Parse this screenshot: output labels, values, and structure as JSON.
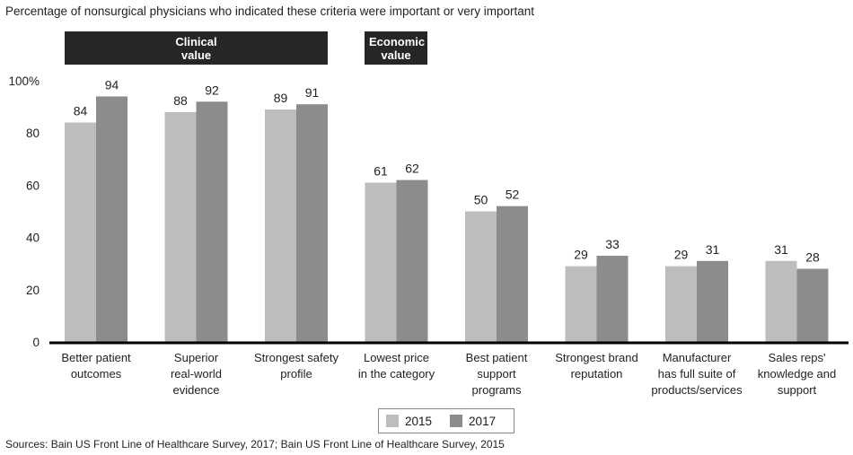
{
  "chart_data": {
    "type": "bar",
    "subtitle": "Percentage of nonsurgical physicians who indicated these criteria were important or very important",
    "categories": [
      [
        "Better patient",
        "outcomes"
      ],
      [
        "Superior",
        "real-world",
        "evidence"
      ],
      [
        "Strongest safety",
        "profile"
      ],
      [
        "Lowest price",
        "in the category"
      ],
      [
        "Best patient",
        "support",
        "programs"
      ],
      [
        "Strongest brand",
        "reputation"
      ],
      [
        "Manufacturer",
        "has full suite of",
        "products/services"
      ],
      [
        "Sales reps'",
        "knowledge and",
        "support"
      ]
    ],
    "series": [
      {
        "name": "2015",
        "values": [
          84,
          88,
          89,
          61,
          50,
          29,
          29,
          31
        ],
        "color": "#bdbdbd"
      },
      {
        "name": "2017",
        "values": [
          94,
          92,
          91,
          62,
          52,
          33,
          31,
          28
        ],
        "color": "#8c8c8c"
      }
    ],
    "ylim": [
      0,
      100
    ],
    "yticks": [
      "0",
      "20",
      "40",
      "60",
      "80",
      "100%"
    ],
    "groups": [
      {
        "label": "Clinical value",
        "from": 0,
        "to": 2
      },
      {
        "label": "Economic value",
        "from": 3,
        "to": 3
      }
    ],
    "legend_position": "bottom-center",
    "grid": false
  },
  "source": "Sources: Bain US Front Line of Healthcare Survey, 2017; Bain US Front Line of Healthcare Survey, 2015"
}
